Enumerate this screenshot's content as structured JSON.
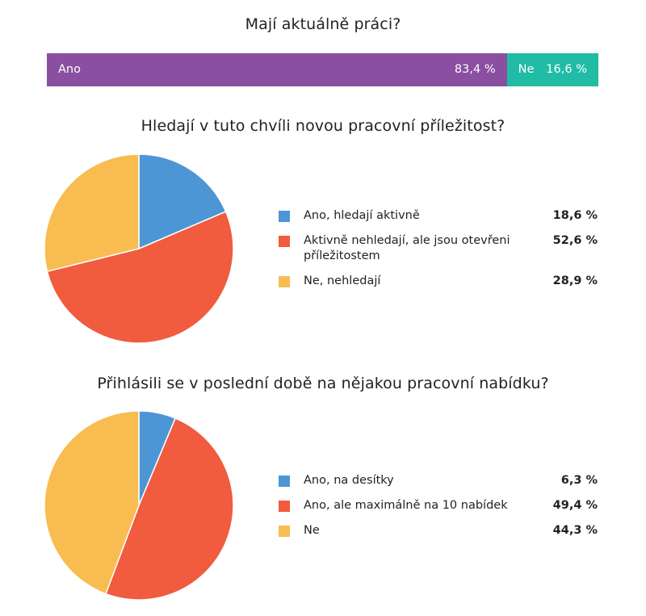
{
  "chart_data": [
    {
      "type": "bar",
      "title": "Mají aktuálně práci?",
      "orientation": "horizontal-stacked",
      "categories": [
        "Ano",
        "Ne"
      ],
      "values": [
        83.4,
        16.6
      ],
      "value_labels": [
        "83,4 %",
        "16,6 %"
      ],
      "colors": [
        "#8A4FA0",
        "#20BCA6"
      ]
    },
    {
      "type": "pie",
      "title": "Hledají v tuto chvíli novou pracovní příležitost?",
      "categories": [
        "Ano, hledají aktivně",
        "Aktivně nehledají, ale jsou otevřeni příležitostem",
        "Ne, nehledají"
      ],
      "values": [
        18.6,
        52.6,
        28.9
      ],
      "value_labels": [
        "18,6 %",
        "52,6 %",
        "28,9 %"
      ],
      "colors": [
        "#4D96D5",
        "#F15B3E",
        "#F8BC51"
      ]
    },
    {
      "type": "pie",
      "title": "Přihlásili se v poslední době na nějakou pracovní nabídku?",
      "categories": [
        "Ano, na desítky",
        "Ano, ale maximálně na 10 nabídek",
        "Ne"
      ],
      "values": [
        6.3,
        49.4,
        44.3
      ],
      "value_labels": [
        "6,3 %",
        "49,4 %",
        "44,3 %"
      ],
      "colors": [
        "#4D96D5",
        "#F15B3E",
        "#F8BC51"
      ]
    }
  ]
}
